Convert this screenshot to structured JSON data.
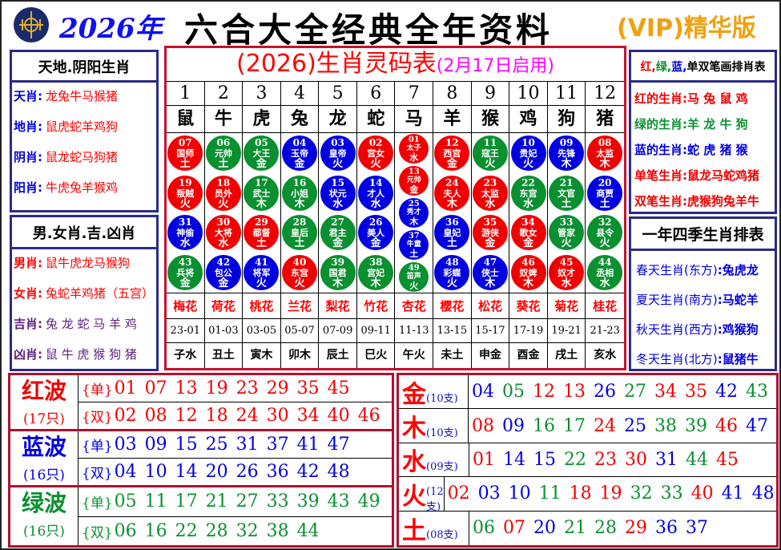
{
  "header": {
    "year": "2026年",
    "title": "六合大全经典全年资料",
    "vip": "(VIP)精华版"
  },
  "colors": {
    "red": "#f00000",
    "blue": "#0000e0",
    "green": "#0a9030"
  },
  "left": {
    "box1": {
      "title": "天地.阴阳生肖",
      "rows": [
        {
          "k": "天肖:",
          "v": "龙兔牛马猴猪"
        },
        {
          "k": "地肖:",
          "v": "鼠虎蛇羊鸡狗"
        },
        {
          "k": "阴肖:",
          "v": "鼠龙蛇马狗猪"
        },
        {
          "k": "阳肖:",
          "v": "牛虎兔羊猴鸡"
        }
      ]
    },
    "box2": {
      "title": "男.女肖.吉.凶肖",
      "rows": [
        {
          "k": "男肖:",
          "v": "鼠牛虎龙马猴狗"
        },
        {
          "k": "女肖:",
          "v": "兔蛇羊鸡猪（五宫）"
        },
        {
          "k": "吉肖:",
          "v": "兔 龙 蛇 马 羊 鸡"
        },
        {
          "k": "凶肖:",
          "v": "鼠 牛 虎 猴 狗 猪"
        }
      ]
    }
  },
  "center": {
    "title": "(2026)生肖灵码表",
    "subtitle": "(2月17日启用)",
    "columns": [
      {
        "n": "1",
        "z": "鼠",
        "f": "梅花",
        "t": "23-01",
        "b": "子水",
        "balls": [
          [
            "07",
            "国师",
            "土"
          ],
          [
            "19",
            "叛贼",
            "火"
          ],
          [
            "31",
            "神偷",
            "水"
          ],
          [
            "43",
            "兵将",
            "金"
          ]
        ]
      },
      {
        "n": "2",
        "z": "牛",
        "f": "荷花",
        "t": "01-03",
        "b": "丑土",
        "balls": [
          [
            "06",
            "元帅",
            "土"
          ],
          [
            "18",
            "员外",
            "火"
          ],
          [
            "30",
            "大将",
            "水"
          ],
          [
            "42",
            "包公",
            "金"
          ]
        ]
      },
      {
        "n": "3",
        "z": "虎",
        "f": "桃花",
        "t": "03-05",
        "b": "寅木",
        "balls": [
          [
            "05",
            "大王",
            "金"
          ],
          [
            "17",
            "武士",
            "木"
          ],
          [
            "29",
            "都督",
            "土"
          ],
          [
            "41",
            "将军",
            "火"
          ]
        ]
      },
      {
        "n": "4",
        "z": "兔",
        "f": "兰花",
        "t": "05-07",
        "b": "卯木",
        "balls": [
          [
            "04",
            "玉帝",
            "金"
          ],
          [
            "16",
            "小姐",
            "木"
          ],
          [
            "28",
            "皇后",
            "土"
          ],
          [
            "40",
            "东宫",
            "火"
          ]
        ]
      },
      {
        "n": "5",
        "z": "龙",
        "f": "梨花",
        "t": "07-09",
        "b": "辰土",
        "balls": [
          [
            "03",
            "皇帝",
            "火"
          ],
          [
            "15",
            "状元",
            "水"
          ],
          [
            "27",
            "君主",
            "金"
          ],
          [
            "39",
            "国君",
            "木"
          ]
        ]
      },
      {
        "n": "6",
        "z": "蛇",
        "f": "竹花",
        "t": "09-11",
        "b": "巳火",
        "balls": [
          [
            "02",
            "宫女",
            "火"
          ],
          [
            "14",
            "才人",
            "水"
          ],
          [
            "26",
            "美人",
            "金"
          ],
          [
            "38",
            "宫妃",
            "木"
          ]
        ]
      },
      {
        "n": "7",
        "z": "马",
        "f": "杏花",
        "t": "11-13",
        "b": "午火",
        "balls": [
          [
            "01",
            "太子",
            "水"
          ],
          [
            "13",
            "元帅",
            "金"
          ],
          [
            "25",
            "秀才",
            "木"
          ],
          [
            "37",
            "牛童",
            "土"
          ],
          [
            "49",
            "笛声",
            "火"
          ]
        ]
      },
      {
        "n": "8",
        "z": "羊",
        "f": "樱花",
        "t": "13-15",
        "b": "未土",
        "balls": [
          [
            "12",
            "西宫",
            "金"
          ],
          [
            "24",
            "夫人",
            "木"
          ],
          [
            "36",
            "皇妃",
            "土"
          ],
          [
            "48",
            "彩蝶",
            "火"
          ]
        ]
      },
      {
        "n": "9",
        "z": "猴",
        "f": "松花",
        "t": "15-17",
        "b": "申金",
        "balls": [
          [
            "11",
            "寇王",
            "火"
          ],
          [
            "23",
            "太监",
            "水"
          ],
          [
            "35",
            "游侠",
            "金"
          ],
          [
            "47",
            "侠士",
            "木"
          ]
        ]
      },
      {
        "n": "10",
        "z": "鸡",
        "f": "葵花",
        "t": "17-19",
        "b": "酉金",
        "balls": [
          [
            "10",
            "贵妃",
            "火"
          ],
          [
            "22",
            "东宫",
            "水"
          ],
          [
            "34",
            "歌女",
            "金"
          ],
          [
            "46",
            "奴婢",
            "木"
          ]
        ]
      },
      {
        "n": "11",
        "z": "狗",
        "f": "菊花",
        "t": "19-21",
        "b": "戌土",
        "balls": [
          [
            "09",
            "先锋",
            "木"
          ],
          [
            "21",
            "文官",
            "土"
          ],
          [
            "33",
            "管家",
            "火"
          ],
          [
            "45",
            "奴才",
            "水"
          ]
        ]
      },
      {
        "n": "12",
        "z": "猪",
        "f": "桂花",
        "t": "21-23",
        "b": "亥水",
        "balls": [
          [
            "08",
            "太监",
            "木"
          ],
          [
            "20",
            "商贾",
            "土"
          ],
          [
            "32",
            "县令",
            "火"
          ],
          [
            "44",
            "丞相",
            "水"
          ]
        ]
      }
    ]
  },
  "right": {
    "box1": {
      "title_parts": [
        "红,",
        "绿,",
        "蓝,",
        "单双笔画排肖表"
      ],
      "rows": [
        {
          "k": "红的生肖:",
          "v": "马 兔 鼠 鸡",
          "c": "red"
        },
        {
          "k": "绿的生肖:",
          "v": "羊 龙 牛 狗",
          "c": "green"
        },
        {
          "k": "蓝的生肖:",
          "v": "蛇 虎 猪 猴",
          "c": "blue"
        },
        {
          "k": "单笔生肖:",
          "v": "鼠龙马蛇鸡猪",
          "c": "red"
        },
        {
          "k": "双笔生肖:",
          "v": "虎猴狗兔羊牛",
          "c": "red"
        }
      ]
    },
    "box2": {
      "title": "一年四季生肖排表",
      "rows": [
        {
          "k": "春天生肖(东方)",
          "v": ":兔虎龙"
        },
        {
          "k": "夏天生肖(南方)",
          "v": ":马蛇羊"
        },
        {
          "k": "秋天生肖(西方)",
          "v": ":鸡猴狗"
        },
        {
          "k": "冬天生肖(北方)",
          "v": ":鼠猪牛"
        }
      ]
    }
  },
  "waves": [
    {
      "name": "红波",
      "count": "(17只)",
      "color": "red",
      "odd_label": "{单}",
      "odd": [
        "01",
        "07",
        "13",
        "19",
        "23",
        "29",
        "35",
        "45"
      ],
      "even_label": "{双}",
      "even": [
        "02",
        "08",
        "12",
        "18",
        "24",
        "30",
        "34",
        "40",
        "46"
      ]
    },
    {
      "name": "蓝波",
      "count": "(16只)",
      "color": "blue",
      "odd_label": "{单}",
      "odd": [
        "03",
        "09",
        "15",
        "25",
        "31",
        "37",
        "41",
        "47"
      ],
      "even_label": "{双}",
      "even": [
        "04",
        "10",
        "14",
        "20",
        "26",
        "36",
        "42",
        "48"
      ]
    },
    {
      "name": "绿波",
      "count": "(16只)",
      "color": "green",
      "odd_label": "{单}",
      "odd": [
        "05",
        "11",
        "17",
        "21",
        "27",
        "33",
        "39",
        "43",
        "49"
      ],
      "even_label": "{双}",
      "even": [
        "06",
        "16",
        "22",
        "28",
        "32",
        "38",
        "44"
      ]
    }
  ],
  "elements": [
    {
      "name": "金",
      "count": "(10支)",
      "nums": [
        "04",
        "05",
        "12",
        "13",
        "26",
        "27",
        "34",
        "35",
        "42",
        "43"
      ]
    },
    {
      "name": "木",
      "count": "(10支)",
      "nums": [
        "08",
        "09",
        "16",
        "17",
        "24",
        "25",
        "38",
        "39",
        "46",
        "47"
      ]
    },
    {
      "name": "水",
      "count": "(09支)",
      "nums": [
        "01",
        "14",
        "15",
        "22",
        "23",
        "30",
        "31",
        "44",
        "45"
      ]
    },
    {
      "name": "火",
      "count": "(12支)",
      "nums": [
        "02",
        "03",
        "10",
        "11",
        "18",
        "19",
        "32",
        "33",
        "40",
        "41",
        "48",
        "49"
      ]
    },
    {
      "name": "土",
      "count": "(08支)",
      "nums": [
        "06",
        "07",
        "20",
        "21",
        "28",
        "29",
        "36",
        "37"
      ]
    }
  ]
}
